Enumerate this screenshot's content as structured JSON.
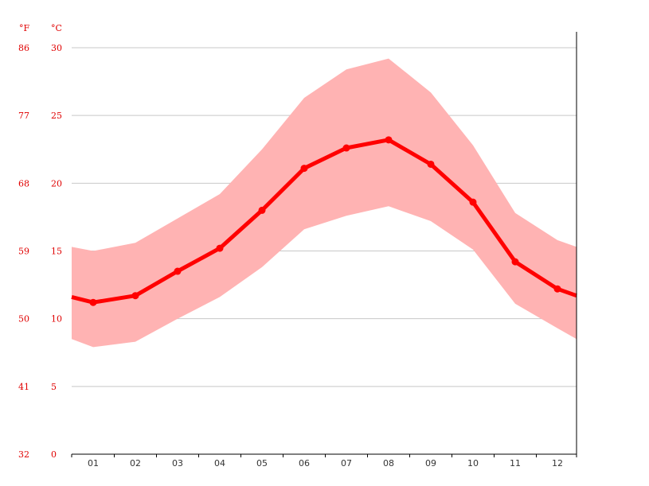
{
  "chart_data": {
    "type": "line",
    "xlabel": "",
    "ylabel": "",
    "categories": [
      "01",
      "02",
      "03",
      "04",
      "05",
      "06",
      "07",
      "08",
      "09",
      "10",
      "11",
      "12"
    ],
    "y_unit_left": "°F",
    "y_unit_right": "°C",
    "ylim": [
      0,
      30
    ],
    "yticks_c": [
      "30",
      "25",
      "20",
      "15",
      "10",
      "5",
      "0"
    ],
    "yticks_f": [
      "86",
      "77",
      "68",
      "59",
      "50",
      "41",
      "32"
    ],
    "grid": true,
    "series": [
      {
        "role": "mean",
        "values": [
          11.2,
          11.7,
          13.5,
          15.2,
          18.0,
          21.1,
          22.6,
          23.2,
          21.4,
          18.6,
          14.2,
          12.2
        ]
      },
      {
        "role": "max",
        "values": [
          15.0,
          15.6,
          17.4,
          19.2,
          22.5,
          26.3,
          28.4,
          29.2,
          26.7,
          22.8,
          17.8,
          15.8
        ]
      },
      {
        "role": "min",
        "values": [
          7.9,
          8.3,
          10.0,
          11.6,
          13.8,
          16.6,
          17.6,
          18.3,
          17.2,
          15.1,
          11.1,
          9.3
        ]
      }
    ],
    "boundary_edges": {
      "mean": [
        11.6,
        11.7
      ],
      "max": [
        15.3,
        15.3
      ],
      "min": [
        8.5,
        8.5
      ]
    },
    "colors": {
      "line": "#ff0000",
      "band": "#ffb3b3",
      "grid": "#c8c8c8",
      "axis": "#000000",
      "ytick": "#e00000",
      "xtick": "#333333"
    }
  }
}
